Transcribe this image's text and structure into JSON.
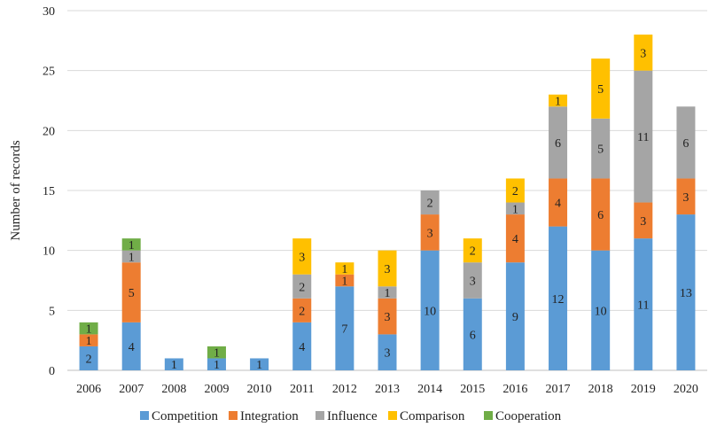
{
  "chart_data": {
    "type": "bar",
    "stacked": true,
    "title": "",
    "xlabel": "",
    "ylabel": "Number of records",
    "ylim": [
      0,
      30
    ],
    "yticks": [
      0,
      5,
      10,
      15,
      20,
      25,
      30
    ],
    "grid": true,
    "legend_position": "bottom",
    "categories": [
      "2006",
      "2007",
      "2008",
      "2009",
      "2010",
      "2011",
      "2012",
      "2013",
      "2014",
      "2015",
      "2016",
      "2017",
      "2018",
      "2019",
      "2020"
    ],
    "series": [
      {
        "name": "Competition",
        "color": "#5B9BD5",
        "values": [
          2,
          4,
          1,
          1,
          1,
          4,
          7,
          3,
          10,
          6,
          9,
          12,
          10,
          11,
          13
        ]
      },
      {
        "name": "Integration",
        "color": "#ED7D31",
        "values": [
          1,
          5,
          0,
          0,
          0,
          2,
          1,
          3,
          3,
          0,
          4,
          4,
          6,
          3,
          3
        ]
      },
      {
        "name": "Influence",
        "color": "#A5A5A5",
        "values": [
          0,
          1,
          0,
          0,
          0,
          2,
          0,
          1,
          2,
          3,
          1,
          6,
          5,
          11,
          6
        ]
      },
      {
        "name": "Comparison",
        "color": "#FFC000",
        "values": [
          0,
          0,
          0,
          0,
          0,
          3,
          1,
          3,
          0,
          2,
          2,
          1,
          5,
          3,
          0
        ]
      },
      {
        "name": "Cooperation",
        "color": "#70AD47",
        "values": [
          1,
          1,
          0,
          1,
          0,
          0,
          0,
          0,
          0,
          0,
          0,
          0,
          0,
          0,
          0
        ]
      }
    ]
  }
}
